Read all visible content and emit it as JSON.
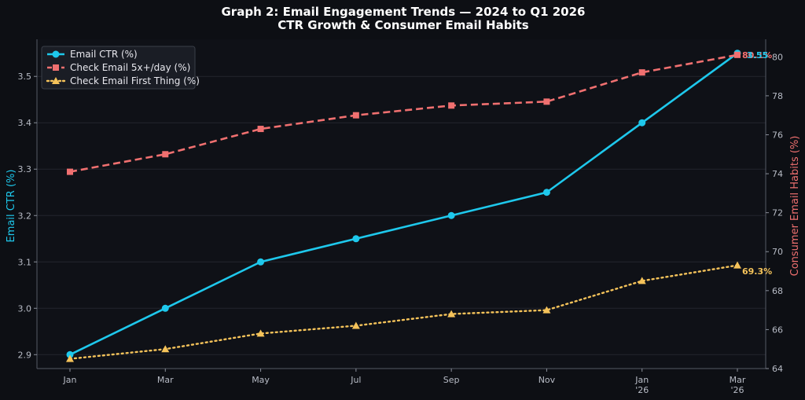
{
  "chart_data": {
    "type": "line",
    "title": "Graph 2: Email Engagement Trends — 2024 to Q1 2026",
    "subtitle": "CTR Growth & Consumer Email Habits",
    "x": [
      "Jan",
      "Mar",
      "May",
      "Jul",
      "Sep",
      "Nov",
      "Jan\n'26",
      "Mar\n'26"
    ],
    "ylabel_left": "Email CTR (%)",
    "ylabel_right": "Consumer Email Habits (%)",
    "ylim_left": [
      2.87,
      3.58
    ],
    "ylim_right": [
      64,
      80.9
    ],
    "yticks_left": [
      2.9,
      3.0,
      3.1,
      3.2,
      3.3,
      3.4,
      3.5
    ],
    "yticks_right": [
      64,
      66,
      68,
      70,
      72,
      74,
      76,
      78,
      80
    ],
    "grid": true,
    "legend_position": "top-left",
    "series": [
      {
        "name": "Email CTR (%)",
        "axis": "left",
        "color": "#1ec8ec",
        "style": "solid",
        "marker": "circle",
        "values": [
          2.9,
          3.0,
          3.1,
          3.15,
          3.2,
          3.25,
          3.4,
          3.55
        ],
        "end_label": "3.55"
      },
      {
        "name": "Check Email 5x+/day (%)",
        "axis": "right",
        "color": "#f07070",
        "style": "dashed",
        "marker": "square",
        "values": [
          74.1,
          75.0,
          76.3,
          77.0,
          77.5,
          77.7,
          79.2,
          80.1
        ],
        "end_label": "80.1%"
      },
      {
        "name": "Check Email First Thing (%)",
        "axis": "right",
        "color": "#f5c35a",
        "style": "dotted",
        "marker": "triangle",
        "values": [
          64.5,
          65.0,
          65.8,
          66.2,
          66.8,
          67.0,
          68.5,
          69.3
        ],
        "end_label": "69.3%"
      }
    ]
  }
}
